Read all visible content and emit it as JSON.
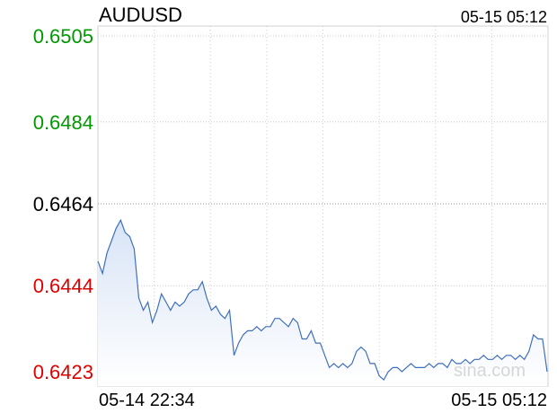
{
  "symbol": "AUDUSD",
  "timestamp": "05-15 05:12",
  "watermark": "sina.com",
  "colors": {
    "line": "#3f6fbf",
    "fill_top": "#d8e4f6",
    "grid": "#cccccc",
    "up": "#009900",
    "down": "#dd0000",
    "neutral": "#000000"
  },
  "chart_data": {
    "type": "area",
    "title": "AUDUSD",
    "ylim": [
      0.6423,
      0.6505
    ],
    "reference_price": 0.6464,
    "y_ticks": [
      {
        "label": "0.6505",
        "value": 0.6505,
        "color": "#009900"
      },
      {
        "label": "0.6484",
        "value": 0.6484,
        "color": "#009900"
      },
      {
        "label": "0.6464",
        "value": 0.6464,
        "color": "#000000"
      },
      {
        "label": "0.6444",
        "value": 0.6444,
        "color": "#dd0000"
      },
      {
        "label": "0.6423",
        "value": 0.6423,
        "color": "#dd0000"
      }
    ],
    "x_labels": [
      "05-14 22:34",
      "05-15 05:12"
    ],
    "grid": true,
    "series": [
      {
        "x_range": [
          0,
          100
        ],
        "values": [
          0.645,
          0.6447,
          0.6452,
          0.6455,
          0.6458,
          0.646,
          0.6457,
          0.6456,
          0.6453,
          0.6441,
          0.6438,
          0.644,
          0.6435,
          0.6438,
          0.6442,
          0.644,
          0.6438,
          0.644,
          0.6439,
          0.644,
          0.6442,
          0.6443,
          0.6443,
          0.6445,
          0.6441,
          0.6438,
          0.6439,
          0.6437,
          0.6436,
          0.6438,
          0.6427,
          0.643,
          0.6432,
          0.6433,
          0.6433,
          0.6434,
          0.6433,
          0.6434,
          0.6434,
          0.6436,
          0.6436,
          0.6435,
          0.6434,
          0.6436,
          0.6435,
          0.6431,
          0.6431,
          0.6433,
          0.643,
          0.643,
          0.6427,
          0.6424,
          0.6425,
          0.6424,
          0.6425,
          0.6424,
          0.6425,
          0.6428,
          0.6429,
          0.6428,
          0.6425,
          0.6425,
          0.6422,
          0.6421,
          0.6423,
          0.6424,
          0.6424,
          0.6423,
          0.6424,
          0.6425,
          0.6424,
          0.6424,
          0.6424,
          0.6425,
          0.6424,
          0.6425,
          0.6425,
          0.6424,
          0.6426,
          0.6425,
          0.6425,
          0.6426,
          0.6425,
          0.6426,
          0.6426,
          0.6427,
          0.6426,
          0.6426,
          0.6427,
          0.6426,
          0.6427,
          0.6427,
          0.6426,
          0.6427,
          0.6426,
          0.6428,
          0.6432,
          0.6431,
          0.6431,
          0.6423
        ]
      }
    ]
  }
}
